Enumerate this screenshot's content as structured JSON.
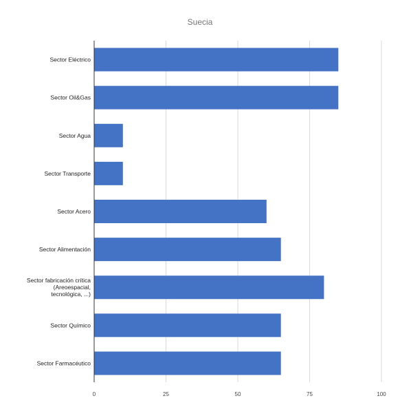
{
  "chart_data": {
    "type": "bar",
    "orientation": "horizontal",
    "title": "Suecia",
    "categories": [
      "Sector Eléctrico",
      "Sector Oil&Gas",
      "Sector Agua",
      "Sector Transporte",
      "Sector Acero",
      "Sector Alimentación",
      "Sector fabricación crítica (Areoespacial, tecnológica, ...)",
      "Sector Químico",
      "Sector Farmacéutico"
    ],
    "category_label_lines": [
      [
        "Sector Eléctrico"
      ],
      [
        "Sector Oil&Gas"
      ],
      [
        "Sector Agua"
      ],
      [
        "Sector Transporte"
      ],
      [
        "Sector Acero"
      ],
      [
        "Sector Alimentación"
      ],
      [
        "Sector fabricación crítica",
        "(Areoespacial,",
        "tecnológica, ...)"
      ],
      [
        "Sector Químico"
      ],
      [
        "Sector Farmacéutico"
      ]
    ],
    "values": [
      85,
      85,
      10,
      10,
      60,
      65,
      80,
      65,
      65
    ],
    "xlim": [
      0,
      100
    ],
    "xticks": [
      0,
      25,
      50,
      75,
      100
    ],
    "xlabel": "",
    "ylabel": "",
    "grid": true,
    "legend": "none",
    "colors": {
      "bar": "#4472c4",
      "grid": "#d9d9d9",
      "axis": "#333333"
    }
  }
}
